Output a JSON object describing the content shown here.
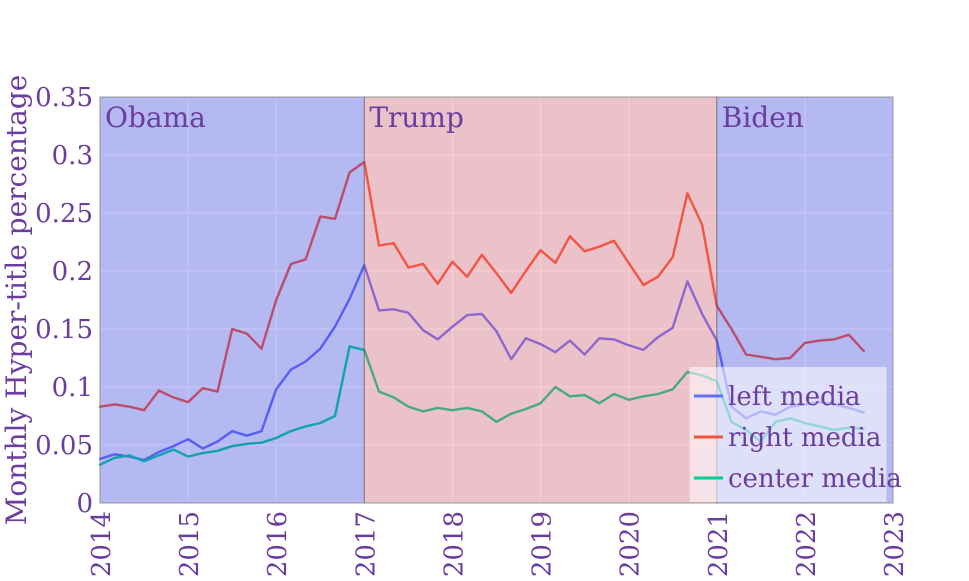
{
  "chart_data": {
    "type": "line",
    "title": "",
    "xlabel": "",
    "ylabel": "Monthly Hyper-title percentage",
    "xlim": [
      2014,
      2023
    ],
    "ylim": [
      0,
      0.35
    ],
    "grid": true,
    "legend_position": "bottom-right",
    "xtick_labels": [
      "2014",
      "2015",
      "2016",
      "2017",
      "2018",
      "2019",
      "2020",
      "2021",
      "2022",
      "2023"
    ],
    "xtick_values": [
      2014,
      2015,
      2016,
      2017,
      2018,
      2019,
      2020,
      2021,
      2022,
      2023
    ],
    "ytick_labels": [
      "0",
      "0.05",
      "0.1",
      "0.15",
      "0.2",
      "0.25",
      "0.3",
      "0.35"
    ],
    "ytick_values": [
      0,
      0.05,
      0.1,
      0.15,
      0.2,
      0.25,
      0.3,
      0.35
    ],
    "x": [
      2014.0,
      2014.167,
      2014.333,
      2014.5,
      2014.667,
      2014.833,
      2015.0,
      2015.167,
      2015.333,
      2015.5,
      2015.667,
      2015.833,
      2016.0,
      2016.167,
      2016.333,
      2016.5,
      2016.667,
      2016.833,
      2017.0,
      2017.167,
      2017.333,
      2017.5,
      2017.667,
      2017.833,
      2018.0,
      2018.167,
      2018.333,
      2018.5,
      2018.667,
      2018.833,
      2019.0,
      2019.167,
      2019.333,
      2019.5,
      2019.667,
      2019.833,
      2020.0,
      2020.167,
      2020.333,
      2020.5,
      2020.667,
      2020.833,
      2021.0,
      2021.167,
      2021.333,
      2021.5,
      2021.667,
      2021.833,
      2022.0,
      2022.167,
      2022.333,
      2022.5,
      2022.667
    ],
    "series": [
      {
        "name": "left media",
        "color": "#636efa",
        "values": [
          0.038,
          0.042,
          0.04,
          0.037,
          0.044,
          0.049,
          0.055,
          0.047,
          0.053,
          0.062,
          0.058,
          0.062,
          0.098,
          0.115,
          0.122,
          0.133,
          0.152,
          0.176,
          0.205,
          0.166,
          0.167,
          0.164,
          0.149,
          0.141,
          0.152,
          0.162,
          0.163,
          0.148,
          0.124,
          0.142,
          0.137,
          0.13,
          0.14,
          0.128,
          0.142,
          0.141,
          0.136,
          0.132,
          0.143,
          0.151,
          0.191,
          0.163,
          0.14,
          0.083,
          0.073,
          0.079,
          0.076,
          0.083,
          0.085,
          0.087,
          0.085,
          0.082,
          0.078
        ]
      },
      {
        "name": "right media",
        "color": "#ef553b",
        "values": [
          0.083,
          0.085,
          0.083,
          0.08,
          0.097,
          0.091,
          0.087,
          0.099,
          0.096,
          0.15,
          0.146,
          0.133,
          0.175,
          0.206,
          0.21,
          0.247,
          0.245,
          0.285,
          0.294,
          0.222,
          0.224,
          0.203,
          0.206,
          0.189,
          0.208,
          0.195,
          0.214,
          0.198,
          0.181,
          0.2,
          0.218,
          0.207,
          0.23,
          0.217,
          0.221,
          0.226,
          0.207,
          0.188,
          0.195,
          0.212,
          0.267,
          0.24,
          0.17,
          0.15,
          0.128,
          0.126,
          0.124,
          0.125,
          0.138,
          0.14,
          0.141,
          0.145,
          0.131
        ]
      },
      {
        "name": "center media",
        "color": "#00cc96",
        "values": [
          0.033,
          0.039,
          0.041,
          0.036,
          0.041,
          0.046,
          0.04,
          0.043,
          0.045,
          0.049,
          0.051,
          0.052,
          0.056,
          0.062,
          0.066,
          0.069,
          0.075,
          0.135,
          0.132,
          0.096,
          0.091,
          0.083,
          0.079,
          0.082,
          0.08,
          0.082,
          0.079,
          0.07,
          0.077,
          0.081,
          0.086,
          0.1,
          0.092,
          0.093,
          0.086,
          0.094,
          0.089,
          0.092,
          0.094,
          0.098,
          0.113,
          0.11,
          0.105,
          0.07,
          0.063,
          0.053,
          0.07,
          0.073,
          0.069,
          0.066,
          0.063,
          0.065,
          0.064
        ]
      }
    ],
    "regions": [
      {
        "label": "Obama",
        "start": 2014,
        "end": 2017,
        "fill": "rgba(57,54,232,0.28)"
      },
      {
        "label": "Trump",
        "start": 2017,
        "end": 2021,
        "fill": "rgba(250,86,89,0.28)"
      },
      {
        "label": "Biden",
        "start": 2021,
        "end": 2023,
        "fill": "rgba(57,54,232,0.28)"
      }
    ],
    "legend_entries": [
      "left media",
      "right media",
      "center media"
    ],
    "colors": {
      "text": "#6a3d9e",
      "plot_bg": "#e5ecf6",
      "gridline": "#ffffff",
      "region_border": "rgba(90,90,90,0.38)",
      "legend_bg": "rgba(255,255,255,0.55)",
      "page_bg": "#ffffff"
    }
  }
}
